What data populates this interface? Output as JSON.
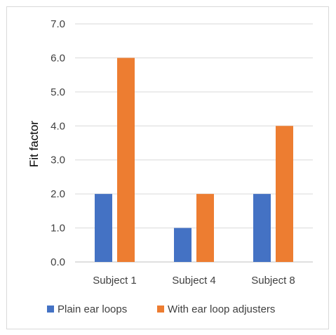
{
  "chart_data": {
    "type": "bar",
    "title": "",
    "xlabel": "",
    "ylabel": "Fit factor",
    "categories": [
      "Subject 1",
      "Subject 4",
      "Subject 8"
    ],
    "series": [
      {
        "name": "Plain ear loops",
        "values": [
          2.0,
          1.0,
          2.0
        ],
        "color": "#4472c4"
      },
      {
        "name": "With ear loop adjusters",
        "values": [
          6.0,
          2.0,
          4.0
        ],
        "color": "#ed7d31"
      }
    ],
    "ylim": [
      0,
      7
    ],
    "yticks": [
      "0.0",
      "1.0",
      "2.0",
      "3.0",
      "4.0",
      "5.0",
      "6.0",
      "7.0"
    ],
    "grid": true,
    "legend_position": "bottom"
  }
}
